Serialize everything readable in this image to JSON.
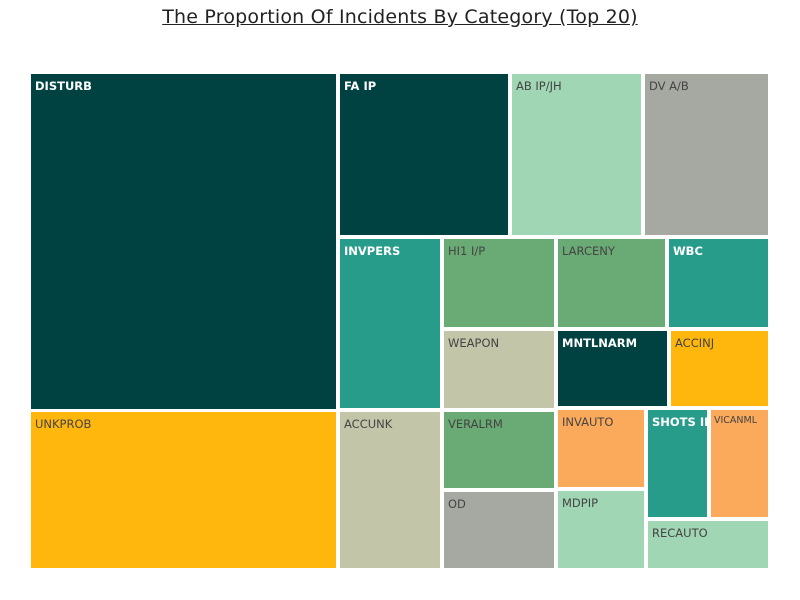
{
  "chart_data": {
    "type": "treemap",
    "title": "The Proportion Of Incidents By Category (Top 20)",
    "tiles": [
      {
        "label": "DISTURB",
        "value": 152,
        "color": "#004242"
      },
      {
        "label": "UNKPROB",
        "value": 79,
        "color": "#FFB60D"
      },
      {
        "label": "FA IP",
        "value": 43,
        "color": "#004242"
      },
      {
        "label": "AB IP/JH",
        "value": 33,
        "color": "#A0D6B4"
      },
      {
        "label": "DV A/B",
        "value": 31,
        "color": "#A6A8A2"
      },
      {
        "label": "INVPERS",
        "value": 19,
        "color": "#289C8A"
      },
      {
        "label": "ACCUNK",
        "value": 20,
        "color": "#C2C5A8"
      },
      {
        "label": "HI1 I/P",
        "value": 12,
        "color": "#6AAA74"
      },
      {
        "label": "WEAPON",
        "value": 11,
        "color": "#C2C5A8"
      },
      {
        "label": "VERALRM",
        "value": 11,
        "color": "#6AAA74"
      },
      {
        "label": "OD",
        "value": 11,
        "color": "#A6A8A2"
      },
      {
        "label": "LARCENY",
        "value": 11,
        "color": "#6AAA74"
      },
      {
        "label": "WBC",
        "value": 11,
        "color": "#289C8A"
      },
      {
        "label": "MNTLNARM",
        "value": 11,
        "color": "#004242"
      },
      {
        "label": "ACCINJ",
        "value": 9,
        "color": "#FFB60D"
      },
      {
        "label": "INVAUTO",
        "value": 8,
        "color": "#FBA95B"
      },
      {
        "label": "MDPIP",
        "value": 8,
        "color": "#A0D6B4"
      },
      {
        "label": "SHOTS IP",
        "value": 6,
        "color": "#289C8A"
      },
      {
        "label": "VICANML",
        "value": 5,
        "color": "#FBA95B"
      },
      {
        "label": "RECAUTO",
        "value": 6,
        "color": "#A0D6B4"
      }
    ],
    "label_colors": {
      "dark": "#ffffff",
      "light": "#444444"
    },
    "gap_color": "#ffffff"
  }
}
